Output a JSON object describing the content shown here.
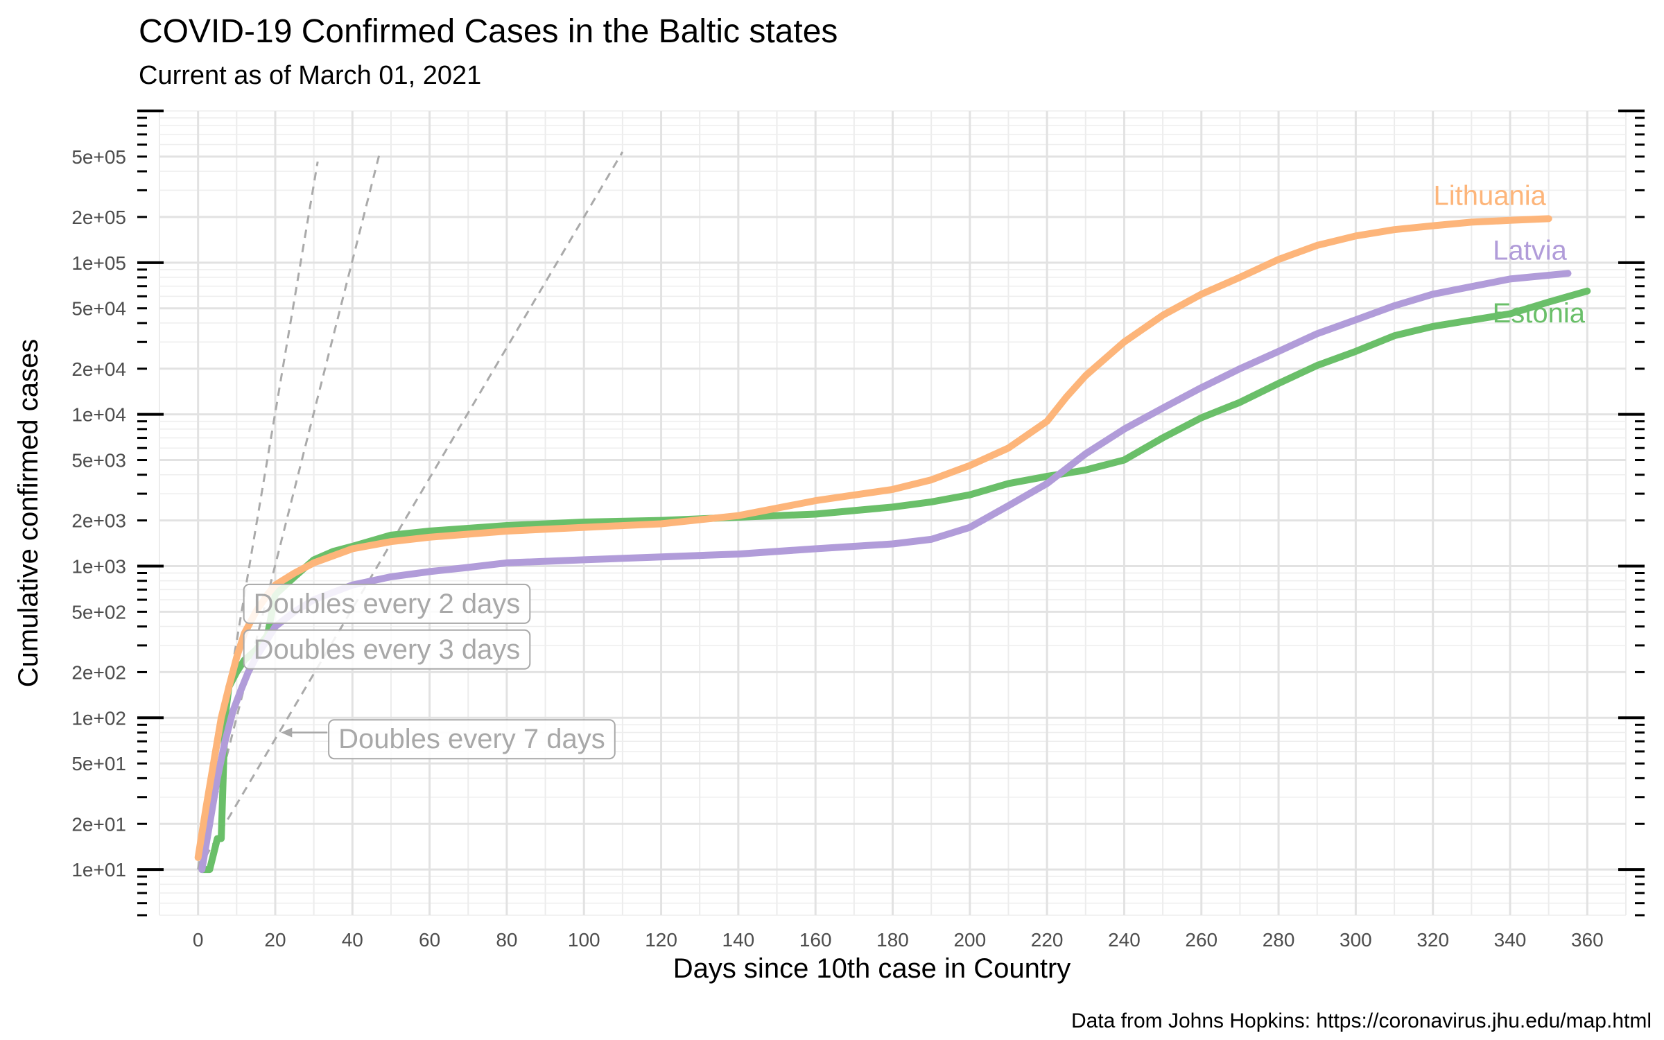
{
  "title": "COVID-19 Confirmed Cases in the Baltic states",
  "subtitle": "Current as of March 01, 2021",
  "caption": "Data from Johns Hopkins: https://coronavirus.jhu.edu/map.html",
  "chart_data": {
    "type": "line",
    "xlabel": "Days since 10th case in Country",
    "ylabel": "Cumulative confirmed cases",
    "xlim": [
      -10,
      370
    ],
    "ylim": [
      5,
      1000000
    ],
    "y_scale": "log10",
    "grid": true,
    "x_ticks": [
      0,
      20,
      40,
      60,
      80,
      100,
      120,
      140,
      160,
      180,
      200,
      220,
      240,
      260,
      280,
      300,
      320,
      340,
      360
    ],
    "x_tick_labels": [
      "0",
      "20",
      "40",
      "60",
      "80",
      "100",
      "120",
      "140",
      "160",
      "180",
      "200",
      "220",
      "240",
      "260",
      "280",
      "300",
      "320",
      "340",
      "360"
    ],
    "y_ticks": [
      10,
      20,
      50,
      100,
      200,
      500,
      1000,
      2000,
      5000,
      10000,
      20000,
      50000,
      100000,
      200000,
      500000
    ],
    "y_tick_labels": [
      "1e+01",
      "2e+01",
      "5e+01",
      "1e+02",
      "2e+02",
      "5e+02",
      "1e+03",
      "2e+03",
      "5e+03",
      "1e+04",
      "2e+04",
      "5e+04",
      "1e+05",
      "2e+05",
      "5e+05"
    ],
    "series": [
      {
        "name": "Estonia",
        "color": "#6abf69",
        "x": [
          1,
          3,
          5,
          6,
          7,
          8,
          10,
          12,
          15,
          18,
          20,
          25,
          30,
          35,
          40,
          50,
          60,
          80,
          100,
          120,
          140,
          160,
          180,
          190,
          200,
          210,
          220,
          230,
          240,
          250,
          260,
          270,
          280,
          290,
          300,
          310,
          320,
          340,
          350,
          360
        ],
        "y": [
          10,
          10,
          16,
          16,
          100,
          160,
          200,
          240,
          280,
          350,
          650,
          850,
          1100,
          1250,
          1350,
          1600,
          1700,
          1850,
          1950,
          2000,
          2100,
          2200,
          2450,
          2650,
          2950,
          3500,
          3900,
          4300,
          5000,
          7000,
          9500,
          12000,
          16000,
          21000,
          26000,
          33000,
          38000,
          46000,
          55000,
          65000
        ]
      },
      {
        "name": "Latvia",
        "color": "#b19cd9",
        "x": [
          1,
          3,
          5,
          7,
          9,
          11,
          13,
          15,
          18,
          20,
          25,
          30,
          40,
          50,
          60,
          70,
          80,
          100,
          120,
          140,
          160,
          180,
          190,
          200,
          210,
          220,
          230,
          240,
          250,
          260,
          270,
          280,
          290,
          300,
          310,
          320,
          340,
          355
        ],
        "y": [
          10,
          20,
          40,
          70,
          110,
          150,
          200,
          250,
          330,
          400,
          500,
          600,
          750,
          850,
          920,
          980,
          1050,
          1100,
          1150,
          1200,
          1300,
          1400,
          1500,
          1800,
          2500,
          3500,
          5500,
          8000,
          11000,
          15000,
          20000,
          26000,
          34000,
          42000,
          52000,
          62000,
          78000,
          85000
        ]
      },
      {
        "name": "Lithuania",
        "color": "#fdb57a",
        "x": [
          0,
          2,
          4,
          6,
          8,
          10,
          12,
          15,
          18,
          20,
          25,
          30,
          40,
          50,
          60,
          80,
          100,
          120,
          140,
          160,
          180,
          190,
          200,
          210,
          220,
          225,
          230,
          240,
          250,
          260,
          270,
          280,
          290,
          300,
          310,
          320,
          330,
          340,
          350
        ],
        "y": [
          12,
          25,
          50,
          100,
          160,
          250,
          360,
          500,
          650,
          750,
          900,
          1050,
          1300,
          1450,
          1550,
          1700,
          1800,
          1900,
          2150,
          2700,
          3200,
          3700,
          4600,
          6000,
          9000,
          13000,
          18000,
          30000,
          45000,
          62000,
          80000,
          105000,
          130000,
          150000,
          165000,
          175000,
          185000,
          190000,
          195000
        ]
      }
    ],
    "reference_lines": [
      {
        "label": "Doubles every 2 days",
        "doubling_days": 2,
        "x_start": 0,
        "x_end": 31
      },
      {
        "label": "Doubles every 3 days",
        "doubling_days": 3,
        "x_start": 0,
        "x_end": 47
      },
      {
        "label": "Doubles every 7 days",
        "doubling_days": 7,
        "x_start": 0,
        "x_end": 110
      }
    ]
  }
}
